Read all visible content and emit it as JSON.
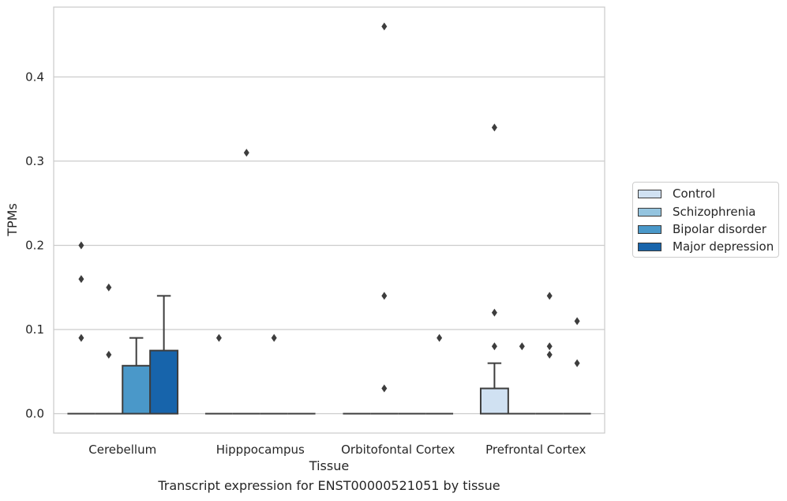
{
  "chart_data": {
    "type": "box",
    "title": "",
    "caption": "Transcript expression for ENST00000521051 by tissue",
    "xlabel": "Tissue",
    "ylabel": "TPMs",
    "ylim": [
      -0.023,
      0.483
    ],
    "yticks": [
      0.0,
      0.1,
      0.2,
      0.3,
      0.4
    ],
    "ytick_labels": [
      "0.0",
      "0.1",
      "0.2",
      "0.3",
      "0.4"
    ],
    "grid": "horizontal",
    "legend_placement": "right",
    "categories": [
      "Cerebellum",
      "Hipppocampus",
      "Orbitofontal Cortex",
      "Prefrontal Cortex"
    ],
    "series": [
      {
        "name": "Control",
        "color": "#d0e1f2",
        "boxes": [
          {
            "q1": 0,
            "median": 0,
            "q3": 0,
            "whisker_low": 0,
            "whisker_high": 0,
            "outliers": [
              0.09,
              0.16,
              0.2
            ]
          },
          {
            "q1": 0,
            "median": 0,
            "q3": 0,
            "whisker_low": 0,
            "whisker_high": 0,
            "outliers": [
              0.09
            ]
          },
          {
            "q1": 0,
            "median": 0,
            "q3": 0,
            "whisker_low": 0,
            "whisker_high": 0,
            "outliers": []
          },
          {
            "q1": 0,
            "median": 0,
            "q3": 0.03,
            "whisker_low": 0,
            "whisker_high": 0.06,
            "outliers": [
              0.08,
              0.12,
              0.34
            ]
          }
        ]
      },
      {
        "name": "Schizophrenia",
        "color": "#94c4df",
        "boxes": [
          {
            "q1": 0,
            "median": 0,
            "q3": 0,
            "whisker_low": 0,
            "whisker_high": 0,
            "outliers": [
              0.07,
              0.15
            ]
          },
          {
            "q1": 0,
            "median": 0,
            "q3": 0,
            "whisker_low": 0,
            "whisker_high": 0,
            "outliers": [
              0.31
            ]
          },
          {
            "q1": 0,
            "median": 0,
            "q3": 0,
            "whisker_low": 0,
            "whisker_high": 0,
            "outliers": [
              0.03,
              0.14,
              0.46
            ]
          },
          {
            "q1": 0,
            "median": 0,
            "q3": 0,
            "whisker_low": 0,
            "whisker_high": 0,
            "outliers": [
              0.08
            ]
          }
        ]
      },
      {
        "name": "Bipolar disorder",
        "color": "#4a98c9",
        "boxes": [
          {
            "q1": 0,
            "median": 0,
            "q3": 0.057,
            "whisker_low": 0,
            "whisker_high": 0.09,
            "outliers": []
          },
          {
            "q1": 0,
            "median": 0,
            "q3": 0,
            "whisker_low": 0,
            "whisker_high": 0,
            "outliers": [
              0.09
            ]
          },
          {
            "q1": 0,
            "median": 0,
            "q3": 0,
            "whisker_low": 0,
            "whisker_high": 0,
            "outliers": []
          },
          {
            "q1": 0,
            "median": 0,
            "q3": 0,
            "whisker_low": 0,
            "whisker_high": 0,
            "outliers": [
              0.07,
              0.08,
              0.14
            ]
          }
        ]
      },
      {
        "name": "Major depression",
        "color": "#1764ab",
        "boxes": [
          {
            "q1": 0,
            "median": 0,
            "q3": 0.075,
            "whisker_low": 0,
            "whisker_high": 0.14,
            "outliers": []
          },
          {
            "q1": 0,
            "median": 0,
            "q3": 0,
            "whisker_low": 0,
            "whisker_high": 0,
            "outliers": []
          },
          {
            "q1": 0,
            "median": 0,
            "q3": 0,
            "whisker_low": 0,
            "whisker_high": 0,
            "outliers": [
              0.09
            ]
          },
          {
            "q1": 0,
            "median": 0,
            "q3": 0,
            "whisker_low": 0,
            "whisker_high": 0,
            "outliers": [
              0.06,
              0.11
            ]
          }
        ]
      }
    ]
  }
}
